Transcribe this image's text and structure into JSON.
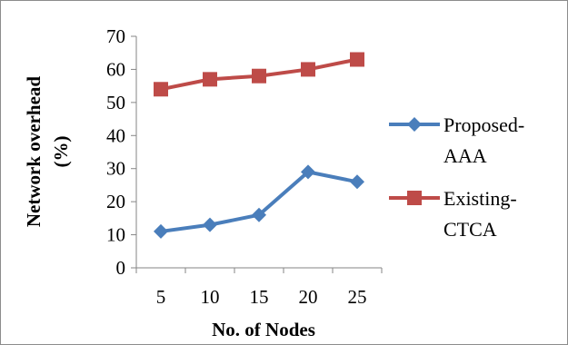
{
  "chart_data": {
    "type": "line",
    "title": "",
    "xlabel": "No. of Nodes",
    "ylabel_lines": [
      "Network overhead",
      "(%)"
    ],
    "categories": [
      "5",
      "10",
      "15",
      "20",
      "25"
    ],
    "ylim": [
      0,
      70
    ],
    "yticks": [
      "0",
      "10",
      "20",
      "30",
      "40",
      "50",
      "60",
      "70"
    ],
    "grid": false,
    "legend_position": "right",
    "series": [
      {
        "name_lines": [
          "Proposed-",
          "AAA"
        ],
        "values": [
          11,
          13,
          16,
          29,
          26
        ],
        "color": "#4a7ebb",
        "marker": "diamond"
      },
      {
        "name_lines": [
          "Existing-",
          "CTCA"
        ],
        "values": [
          54,
          57,
          58,
          60,
          63
        ],
        "color": "#be4b48",
        "marker": "square"
      }
    ]
  }
}
